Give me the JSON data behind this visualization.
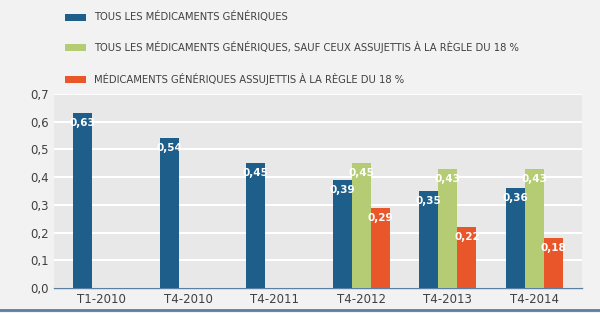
{
  "categories": [
    "T1-2010",
    "T4-2010",
    "T4-2011",
    "T4-2012",
    "T4-2013",
    "T4-2014"
  ],
  "series": [
    {
      "label": "TOUS LES MÉDICAMENTS GÉNÉRIQUES",
      "color": "#1d5f8a",
      "values": [
        0.63,
        0.54,
        0.45,
        0.39,
        0.35,
        0.36
      ]
    },
    {
      "label": "TOUS LES MÉDICAMENTS GÉNÉRIQUES, SAUF CEUX ASSUJETTIS À LA RÈGLE DU 18 %",
      "color": "#b5cc74",
      "values": [
        null,
        null,
        null,
        0.45,
        0.43,
        0.43
      ]
    },
    {
      "label": "MÉDICAMENTS GÉNÉRIQUES ASSUJETTIS À LA RÈGLE DU 18 %",
      "color": "#e8562a",
      "values": [
        null,
        null,
        null,
        0.29,
        0.22,
        0.18
      ]
    }
  ],
  "ylim": [
    0,
    0.7
  ],
  "yticks": [
    0.0,
    0.1,
    0.2,
    0.3,
    0.4,
    0.5,
    0.6,
    0.7
  ],
  "ytick_labels": [
    "0,0",
    "0,1",
    "0,2",
    "0,3",
    "0,4",
    "0,5",
    "0,6",
    "0,7"
  ],
  "bar_width": 0.22,
  "background_color": "#f2f2f2",
  "plot_bg_color": "#e8e8e8",
  "grid_color": "#ffffff",
  "font_color": "#404040",
  "legend_fontsize": 7.2,
  "tick_fontsize": 8.5,
  "value_fontsize": 7.5,
  "value_color_white": "#ffffff",
  "bottom_line_color": "#5a7fa0"
}
